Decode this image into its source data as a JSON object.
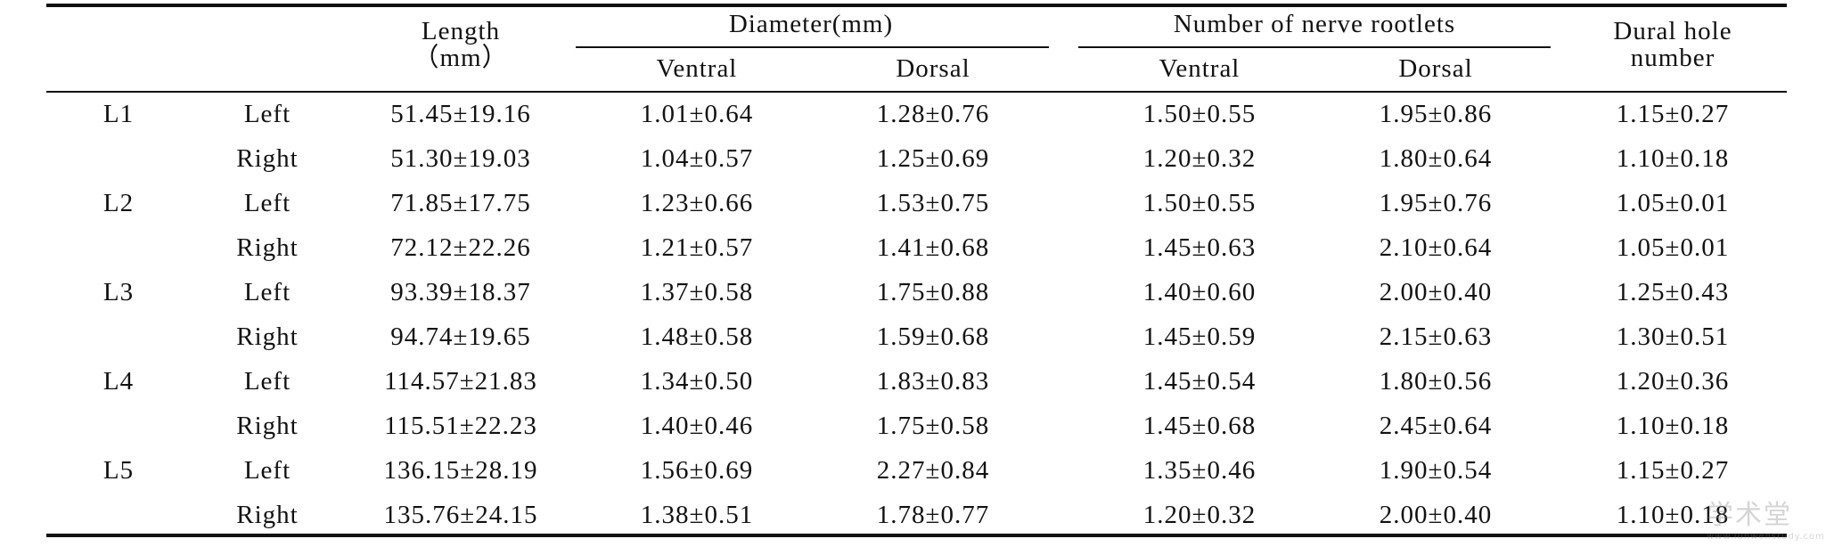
{
  "headers": {
    "length": [
      "Length",
      "（mm）"
    ],
    "diameter": "Diameter(mm)",
    "rootlets": "Number of nerve rootlets",
    "dural": [
      "Dural hole",
      "number"
    ],
    "ventral": "Ventral",
    "dorsal": "Dorsal"
  },
  "rows": [
    {
      "level": "L1",
      "side": "Left",
      "length": "51.45±19.16",
      "dia_ventral": "1.01±0.64",
      "dia_dorsal": "1.28±0.76",
      "root_ventral": "1.50±0.55",
      "root_dorsal": "1.95±0.86",
      "dural": "1.15±0.27"
    },
    {
      "level": "",
      "side": "Right",
      "length": "51.30±19.03",
      "dia_ventral": "1.04±0.57",
      "dia_dorsal": "1.25±0.69",
      "root_ventral": "1.20±0.32",
      "root_dorsal": "1.80±0.64",
      "dural": "1.10±0.18"
    },
    {
      "level": "L2",
      "side": "Left",
      "length": "71.85±17.75",
      "dia_ventral": "1.23±0.66",
      "dia_dorsal": "1.53±0.75",
      "root_ventral": "1.50±0.55",
      "root_dorsal": "1.95±0.76",
      "dural": "1.05±0.01"
    },
    {
      "level": "",
      "side": "Right",
      "length": "72.12±22.26",
      "dia_ventral": "1.21±0.57",
      "dia_dorsal": "1.41±0.68",
      "root_ventral": "1.45±0.63",
      "root_dorsal": "2.10±0.64",
      "dural": "1.05±0.01"
    },
    {
      "level": "L3",
      "side": "Left",
      "length": "93.39±18.37",
      "dia_ventral": "1.37±0.58",
      "dia_dorsal": "1.75±0.88",
      "root_ventral": "1.40±0.60",
      "root_dorsal": "2.00±0.40",
      "dural": "1.25±0.43"
    },
    {
      "level": "",
      "side": "Right",
      "length": "94.74±19.65",
      "dia_ventral": "1.48±0.58",
      "dia_dorsal": "1.59±0.68",
      "root_ventral": "1.45±0.59",
      "root_dorsal": "2.15±0.63",
      "dural": "1.30±0.51"
    },
    {
      "level": "L4",
      "side": "Left",
      "length": "114.57±21.83",
      "dia_ventral": "1.34±0.50",
      "dia_dorsal": "1.83±0.83",
      "root_ventral": "1.45±0.54",
      "root_dorsal": "1.80±0.56",
      "dural": "1.20±0.36"
    },
    {
      "level": "",
      "side": "Right",
      "length": "115.51±22.23",
      "dia_ventral": "1.40±0.46",
      "dia_dorsal": "1.75±0.58",
      "root_ventral": "1.45±0.68",
      "root_dorsal": "2.45±0.64",
      "dural": "1.10±0.18"
    },
    {
      "level": "L5",
      "side": "Left",
      "length": "136.15±28.19",
      "dia_ventral": "1.56±0.69",
      "dia_dorsal": "2.27±0.84",
      "root_ventral": "1.35±0.46",
      "root_dorsal": "1.90±0.54",
      "dural": "1.15±0.27"
    },
    {
      "level": "",
      "side": "Right",
      "length": "135.76±24.15",
      "dia_ventral": "1.38±0.51",
      "dia_dorsal": "1.78±0.77",
      "root_ventral": "1.20±0.32",
      "root_dorsal": "2.00±0.40",
      "dural": "1.10±0.18"
    }
  ],
  "watermark": {
    "main": "学术堂",
    "sub": "www.lunwenstudy.com"
  }
}
